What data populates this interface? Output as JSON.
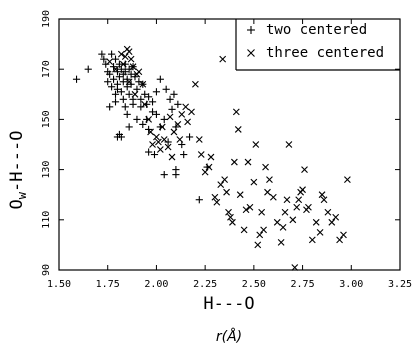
{
  "chart_data": {
    "type": "scatter",
    "title": "",
    "xlabel": "H---O",
    "xunit_label": "r(Å)",
    "ylabel": "O_w-H---O",
    "ylabel_parts": {
      "main": "O",
      "sub": "w",
      "rest": "-H---O"
    },
    "xlim": [
      1.5,
      3.25
    ],
    "ylim": [
      90,
      190
    ],
    "xticks": [
      "1.50",
      "1.75",
      "2.00",
      "2.25",
      "2.50",
      "2.75",
      "3.00",
      "3.25"
    ],
    "yticks": [
      "90",
      "110",
      "130",
      "150",
      "170",
      "190"
    ],
    "grid": false,
    "legend_position": "top-right",
    "series": [
      {
        "name": "two centered",
        "marker": "+",
        "points": [
          [
            1.59,
            166
          ],
          [
            1.65,
            170
          ],
          [
            1.72,
            176
          ],
          [
            1.73,
            174
          ],
          [
            1.74,
            172
          ],
          [
            1.75,
            169
          ],
          [
            1.75,
            165
          ],
          [
            1.76,
            168
          ],
          [
            1.77,
            176
          ],
          [
            1.77,
            163
          ],
          [
            1.78,
            171
          ],
          [
            1.78,
            166
          ],
          [
            1.79,
            174
          ],
          [
            1.79,
            160
          ],
          [
            1.79,
            157
          ],
          [
            1.8,
            169
          ],
          [
            1.8,
            164
          ],
          [
            1.8,
            162
          ],
          [
            1.81,
            172
          ],
          [
            1.81,
            167
          ],
          [
            1.82,
            170
          ],
          [
            1.82,
            161
          ],
          [
            1.83,
            168
          ],
          [
            1.83,
            165
          ],
          [
            1.83,
            158
          ],
          [
            1.84,
            172
          ],
          [
            1.84,
            169
          ],
          [
            1.84,
            155
          ],
          [
            1.85,
            166
          ],
          [
            1.85,
            163
          ],
          [
            1.85,
            152
          ],
          [
            1.86,
            170
          ],
          [
            1.86,
            160
          ],
          [
            1.87,
            168
          ],
          [
            1.87,
            164
          ],
          [
            1.88,
            171
          ],
          [
            1.88,
            156
          ],
          [
            1.89,
            167
          ],
          [
            1.9,
            162
          ],
          [
            1.9,
            150
          ],
          [
            1.91,
            165
          ],
          [
            1.92,
            158
          ],
          [
            1.92,
            155
          ],
          [
            1.93,
            164
          ],
          [
            1.94,
            160
          ],
          [
            1.95,
            150
          ],
          [
            1.95,
            156
          ],
          [
            1.96,
            146
          ],
          [
            1.96,
            159
          ],
          [
            1.98,
            153
          ],
          [
            1.98,
            157
          ],
          [
            2.0,
            161
          ],
          [
            2.0,
            152
          ],
          [
            2.02,
            166
          ],
          [
            2.02,
            147
          ],
          [
            2.04,
            150
          ],
          [
            2.05,
            162
          ],
          [
            2.06,
            141
          ],
          [
            2.07,
            158
          ],
          [
            2.08,
            154
          ],
          [
            2.09,
            160
          ],
          [
            2.1,
            147
          ],
          [
            2.1,
            130
          ],
          [
            2.11,
            156
          ],
          [
            2.13,
            140
          ],
          [
            2.14,
            136
          ],
          [
            2.17,
            143
          ],
          [
            2.22,
            118
          ],
          [
            2.26,
            131
          ],
          [
            1.76,
            155
          ],
          [
            1.8,
            143
          ],
          [
            1.82,
            143
          ],
          [
            1.88,
            158
          ],
          [
            1.93,
            148
          ],
          [
            1.96,
            137
          ],
          [
            1.99,
            136
          ],
          [
            2.04,
            128
          ],
          [
            2.1,
            128
          ],
          [
            1.81,
            144
          ],
          [
            1.86,
            147
          ]
        ]
      },
      {
        "name": "three centered",
        "marker": "x",
        "points": [
          [
            1.76,
            173
          ],
          [
            1.79,
            170
          ],
          [
            1.82,
            176
          ],
          [
            1.83,
            172
          ],
          [
            1.84,
            175
          ],
          [
            1.85,
            178
          ],
          [
            1.86,
            177
          ],
          [
            1.87,
            174
          ],
          [
            1.88,
            171
          ],
          [
            1.9,
            168
          ],
          [
            1.91,
            169
          ],
          [
            1.86,
            165
          ],
          [
            1.89,
            160
          ],
          [
            1.93,
            164
          ],
          [
            1.94,
            156
          ],
          [
            1.96,
            150
          ],
          [
            1.97,
            145
          ],
          [
            1.98,
            140
          ],
          [
            2.0,
            143
          ],
          [
            2.01,
            141
          ],
          [
            2.02,
            138
          ],
          [
            2.03,
            147
          ],
          [
            2.04,
            142
          ],
          [
            2.06,
            139
          ],
          [
            2.07,
            151
          ],
          [
            2.08,
            135
          ],
          [
            2.09,
            145
          ],
          [
            2.11,
            148
          ],
          [
            2.12,
            142
          ],
          [
            2.13,
            152
          ],
          [
            2.15,
            155
          ],
          [
            2.16,
            149
          ],
          [
            2.18,
            153
          ],
          [
            2.2,
            164
          ],
          [
            2.22,
            142
          ],
          [
            2.23,
            136
          ],
          [
            2.25,
            129
          ],
          [
            2.27,
            131
          ],
          [
            2.28,
            135
          ],
          [
            2.3,
            119
          ],
          [
            2.31,
            117
          ],
          [
            2.33,
            124
          ],
          [
            2.34,
            174
          ],
          [
            2.35,
            126
          ],
          [
            2.36,
            121
          ],
          [
            2.37,
            113
          ],
          [
            2.38,
            111
          ],
          [
            2.39,
            109
          ],
          [
            2.4,
            133
          ],
          [
            2.41,
            153
          ],
          [
            2.42,
            146
          ],
          [
            2.43,
            120
          ],
          [
            2.45,
            106
          ],
          [
            2.46,
            114
          ],
          [
            2.47,
            133
          ],
          [
            2.48,
            115
          ],
          [
            2.5,
            125
          ],
          [
            2.51,
            140
          ],
          [
            2.52,
            100
          ],
          [
            2.53,
            104
          ],
          [
            2.54,
            113
          ],
          [
            2.55,
            106
          ],
          [
            2.56,
            131
          ],
          [
            2.57,
            121
          ],
          [
            2.58,
            126
          ],
          [
            2.6,
            119
          ],
          [
            2.62,
            109
          ],
          [
            2.64,
            101
          ],
          [
            2.65,
            107
          ],
          [
            2.66,
            113
          ],
          [
            2.67,
            118
          ],
          [
            2.68,
            140
          ],
          [
            2.7,
            110
          ],
          [
            2.71,
            91
          ],
          [
            2.72,
            115
          ],
          [
            2.73,
            118
          ],
          [
            2.74,
            121
          ],
          [
            2.75,
            122
          ],
          [
            2.76,
            130
          ],
          [
            2.77,
            114
          ],
          [
            2.78,
            115
          ],
          [
            2.8,
            102
          ],
          [
            2.82,
            109
          ],
          [
            2.84,
            105
          ],
          [
            2.85,
            120
          ],
          [
            2.86,
            118
          ],
          [
            2.88,
            113
          ],
          [
            2.9,
            109
          ],
          [
            2.92,
            111
          ],
          [
            2.94,
            102
          ],
          [
            2.96,
            104
          ],
          [
            2.98,
            126
          ]
        ]
      }
    ]
  }
}
